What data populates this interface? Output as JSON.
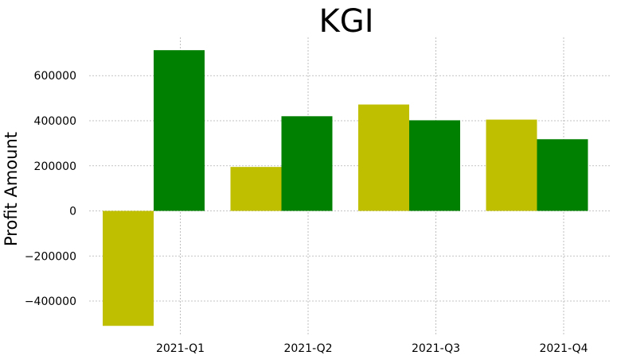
{
  "chart_data": {
    "type": "bar",
    "title": "KGI",
    "xlabel": "",
    "ylabel": "Profit Amount",
    "categories": [
      "2021-Q1",
      "2021-Q2",
      "2021-Q3",
      "2021-Q4"
    ],
    "series": [
      {
        "values": [
          -510000,
          195000,
          472000,
          405000
        ],
        "color": "#bfbf00"
      },
      {
        "values": [
          713000,
          420000,
          402000,
          318000
        ],
        "color": "#008000"
      }
    ],
    "yticks": [
      -400000,
      -200000,
      0,
      200000,
      400000,
      600000
    ],
    "ytick_labels": [
      "−400000",
      "−200000",
      "0",
      "200000",
      "400000",
      "600000"
    ],
    "ylim": [
      -555000,
      770000
    ],
    "grid": true,
    "legend": "none"
  }
}
